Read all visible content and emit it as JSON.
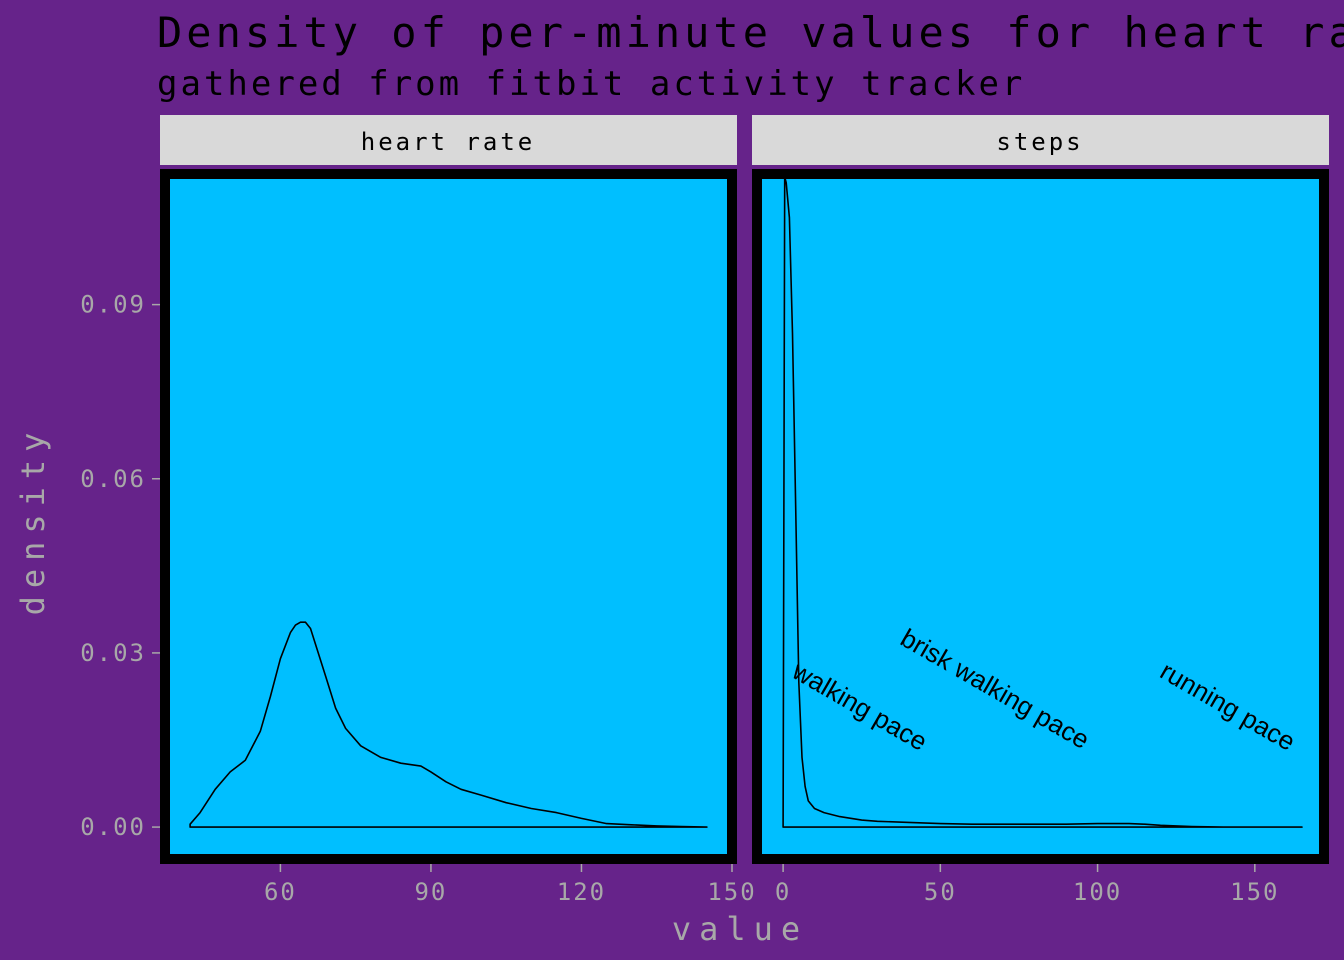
{
  "colors": {
    "background": "#66238A",
    "panel": "#00BFFF",
    "panel_border": "#000000",
    "strip": "#D9D9D9",
    "curve": "#000000",
    "tick_text": "#A8A8A8"
  },
  "chart_data": {
    "type": "area",
    "title": "Density of per-minute values for heart rate and steps",
    "subtitle": "gathered from fitbit activity tracker",
    "xlabel": "value",
    "ylabel": "density",
    "ylim": [
      -0.0055,
      0.1125
    ],
    "y_ticks": [
      0.0,
      0.03,
      0.06,
      0.09
    ],
    "y_tick_labels": [
      "0.00",
      "0.03",
      "0.06",
      "0.09"
    ],
    "panels": [
      {
        "name": "heart rate",
        "xlim": [
          37,
          150
        ],
        "x_ticks": [
          60,
          90,
          120,
          150
        ],
        "x_tick_labels": [
          "60",
          "90",
          "120",
          "150"
        ],
        "series": [
          {
            "x": [
              42,
              44,
              47,
              50,
              53,
              56,
              58,
              60,
              62,
              63,
              64,
              65,
              66,
              67,
              69,
              71,
              73,
              76,
              80,
              84,
              88,
              90,
              93,
              96,
              100,
              105,
              110,
              115,
              120,
              125,
              130,
              135,
              140,
              145
            ],
            "y": [
              0.0005,
              0.0025,
              0.0065,
              0.0095,
              0.0115,
              0.0165,
              0.0225,
              0.029,
              0.0335,
              0.0348,
              0.0353,
              0.0353,
              0.0342,
              0.0315,
              0.026,
              0.0205,
              0.017,
              0.014,
              0.012,
              0.011,
              0.0105,
              0.0095,
              0.0078,
              0.0065,
              0.0055,
              0.0042,
              0.0032,
              0.0025,
              0.0015,
              0.0006,
              0.0004,
              0.0002,
              0.0001,
              0.0
            ]
          }
        ]
      },
      {
        "name": "steps",
        "xlim": [
          -8.3,
          172
        ],
        "x_ticks": [
          0,
          50,
          100,
          150
        ],
        "x_tick_labels": [
          "0",
          "50",
          "100",
          "150"
        ],
        "series": [
          {
            "x": [
              0,
              0.5,
              1,
              2,
              3,
              4,
              5,
              6,
              7,
              8,
              10,
              13,
              18,
              25,
              30,
              40,
              50,
              60,
              70,
              80,
              90,
              100,
              110,
              115,
              120,
              130,
              140,
              150,
              160,
              165
            ],
            "y": [
              0.0,
              0.112,
              0.111,
              0.105,
              0.085,
              0.055,
              0.025,
              0.012,
              0.007,
              0.0045,
              0.0032,
              0.0025,
              0.0018,
              0.0012,
              0.001,
              0.0008,
              0.0006,
              0.0005,
              0.0005,
              0.0005,
              0.0005,
              0.0006,
              0.0006,
              0.0005,
              0.0003,
              0.0001,
              0.0,
              0.0,
              0.0,
              0.0
            ]
          }
        ],
        "annotations": [
          {
            "label": "walking pace",
            "x": 23,
            "y": 0.0195,
            "angle": 30
          },
          {
            "label": "brisk walking pace",
            "x": 66,
            "y": 0.0225,
            "angle": 30
          },
          {
            "label": "running pace",
            "x": 140,
            "y": 0.0195,
            "angle": 30
          }
        ]
      }
    ]
  }
}
